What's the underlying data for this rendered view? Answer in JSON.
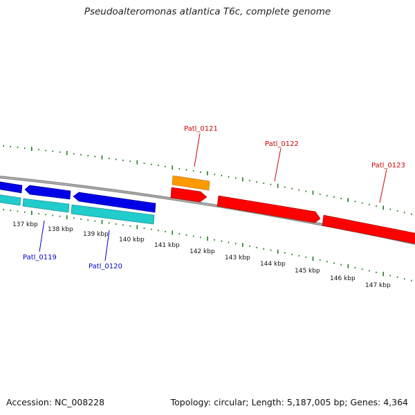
{
  "title": "Pseudoalteromonas atlantica T6c, complete genome",
  "accession": "Accession: NC_008228",
  "topology": "Topology: circular; Length: 5,187,005 bp; Genes: 4,364",
  "colors": {
    "backbone": "#808080",
    "tick": "#1a7a1a",
    "forward_cds": "#0000e6",
    "reverse_cds": "#18c8c8",
    "highlight_cds": "#ff0000",
    "orange_feature": "#ff9900",
    "label_blue": "#0000cc",
    "label_red": "#cc0000"
  },
  "ticks": [
    "137 kbp",
    "138 kbp",
    "139 kbp",
    "140 kbp",
    "141 kbp",
    "142 kbp",
    "143 kbp",
    "144 kbp",
    "145 kbp",
    "146 kbp",
    "147 kbp"
  ],
  "gene_labels": [
    {
      "name": "Patl_0119",
      "color": "blue"
    },
    {
      "name": "Patl_0120",
      "color": "blue"
    },
    {
      "name": "Patl_0121",
      "color": "red"
    },
    {
      "name": "Patl_0122",
      "color": "red"
    },
    {
      "name": "Patl_0123",
      "color": "red"
    }
  ]
}
